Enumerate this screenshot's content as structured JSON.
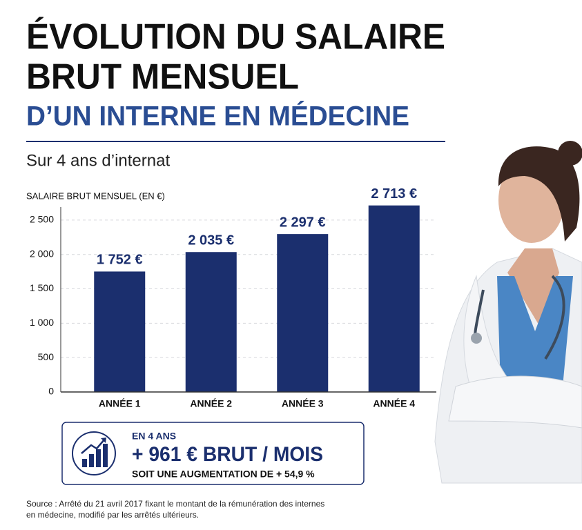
{
  "header": {
    "title_lines": [
      "ÉVOLUTION DU SALAIRE",
      "BRUT MENSUEL"
    ],
    "title_accent": "D’UN INTERNE EN MÉDECINE",
    "subtitle": "Sur 4 ans d’internat"
  },
  "chart_data": {
    "type": "bar",
    "y_label": "SALAIRE BRUT MENSUEL (EN €)",
    "categories": [
      "ANNÉE 1",
      "ANNÉE 2",
      "ANNÉE 3",
      "ANNÉE 4"
    ],
    "values": [
      1752,
      2035,
      2297,
      2713
    ],
    "value_labels": [
      "1 752 €",
      "2 035 €",
      "2 297 €",
      "2 713 €"
    ],
    "color": "#1b2f6e",
    "ylim": [
      0,
      2750
    ],
    "yticks": [
      0,
      500,
      {
        "value": 1000,
        "label": "1 000"
      },
      {
        "value": 1500,
        "label": "1 500"
      },
      {
        "value": 2000,
        "label": "2 000"
      },
      {
        "value": 2500,
        "label": "2 500"
      }
    ],
    "grid": true
  },
  "summary": {
    "kicker": "EN 4 ANS",
    "headline": "+ 961 € BRUT / MOIS",
    "detail": "SOIT UNE AUGMENTATION DE + 54,9 %"
  },
  "source": [
    "Source : Arrêté du 21 avril 2017 fixant le montant de la rémunération des internes",
    "en médecine, modifié par les arrêtés ultérieurs."
  ]
}
